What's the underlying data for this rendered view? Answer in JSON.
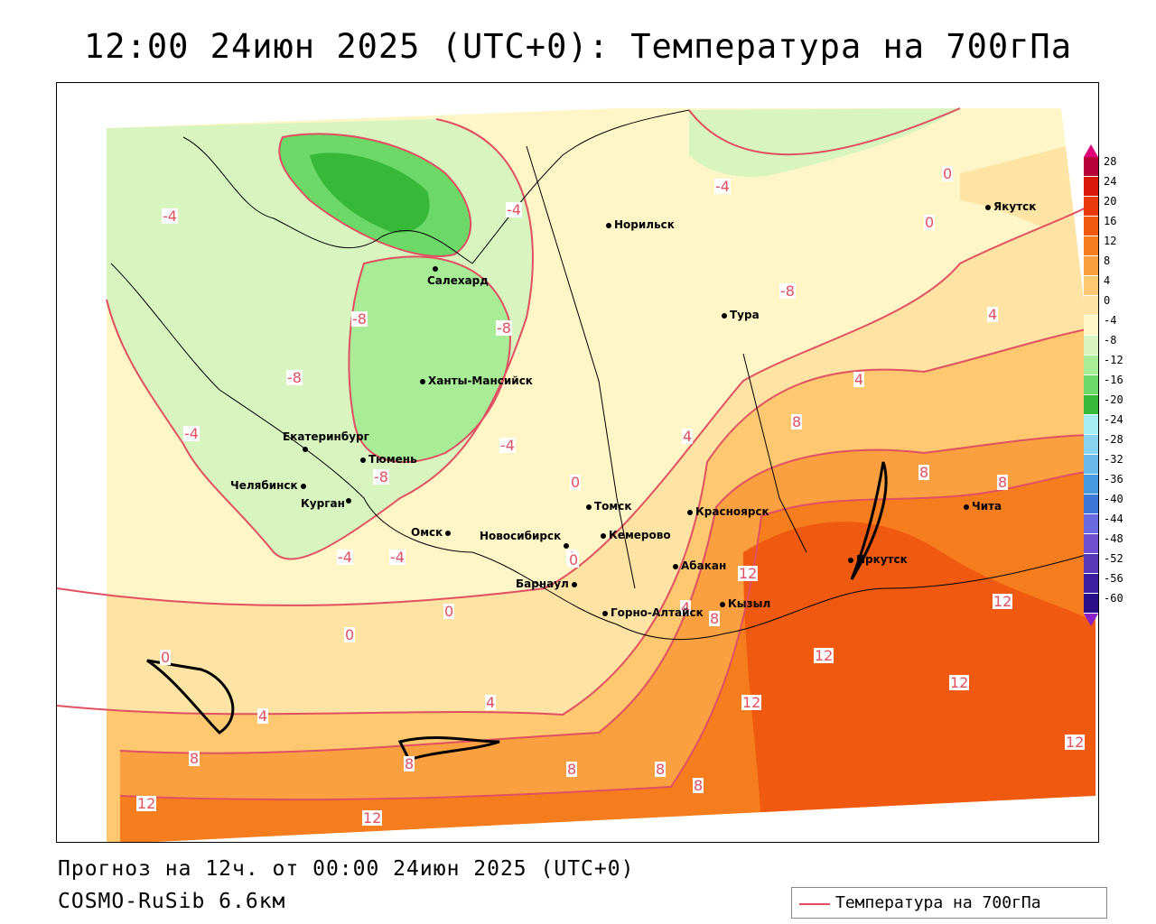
{
  "title": "12:00 24июн 2025 (UTC+0): Температура на 700гПа",
  "footer": {
    "forecast": "Прогноз на 12ч. от 00:00 24июн 2025 (UTC+0)",
    "model": "COSMO-RuSib 6.6км"
  },
  "legend": {
    "label": "Температура на 700гПа",
    "line_color": "#e05060"
  },
  "colorbar": {
    "ticks": [
      "28",
      "24",
      "20",
      "16",
      "12",
      "8",
      "4",
      "0",
      "-4",
      "-8",
      "-12",
      "-16",
      "-20",
      "-24",
      "-28",
      "-32",
      "-36",
      "-40",
      "-44",
      "-48",
      "-52",
      "-56",
      "-60"
    ],
    "colors": [
      "#b8003a",
      "#d81808",
      "#e83a0a",
      "#f05a10",
      "#f57d1e",
      "#fba040",
      "#fdc870",
      "#fde4a4",
      "#fff6c8",
      "#d8f5c0",
      "#a8ec98",
      "#6cd868",
      "#38b838",
      "#a8ecf4",
      "#88d4f0",
      "#68b8e8",
      "#4898e0",
      "#3c78d8",
      "#6a6ae0",
      "#7050d0",
      "#5838b8",
      "#3a20a0",
      "#2a1088"
    ]
  },
  "cities": [
    {
      "name": "Норильск"
    },
    {
      "name": "Якутск"
    },
    {
      "name": "Салехард"
    },
    {
      "name": "Тура"
    },
    {
      "name": "Ханты-Мансийск"
    },
    {
      "name": "Екатеринбург"
    },
    {
      "name": "Тюмень"
    },
    {
      "name": "Челябинск"
    },
    {
      "name": "Курган"
    },
    {
      "name": "Омск"
    },
    {
      "name": "Томск"
    },
    {
      "name": "Красноярск"
    },
    {
      "name": "Новосибирск"
    },
    {
      "name": "Кемерово"
    },
    {
      "name": "Чита"
    },
    {
      "name": "Абакан"
    },
    {
      "name": "Иркутск"
    },
    {
      "name": "Барнаул"
    },
    {
      "name": "Горно-Алтайск"
    },
    {
      "name": "Кызыл"
    }
  ],
  "contour_labels": [
    "-4",
    "-4",
    "-4",
    "0",
    "0",
    "-4",
    "-8",
    "-8",
    "-8",
    "-8",
    "-4",
    "-4",
    "4",
    "-8",
    "4",
    "4",
    "0",
    "0",
    "0",
    "-4",
    "0",
    "0",
    "4",
    "8",
    "8",
    "8",
    "12",
    "8",
    "12",
    "12",
    "12",
    "12",
    "0",
    "4",
    "4",
    "8",
    "8",
    "8",
    "8",
    "8",
    "12",
    "12",
    "12"
  ]
}
